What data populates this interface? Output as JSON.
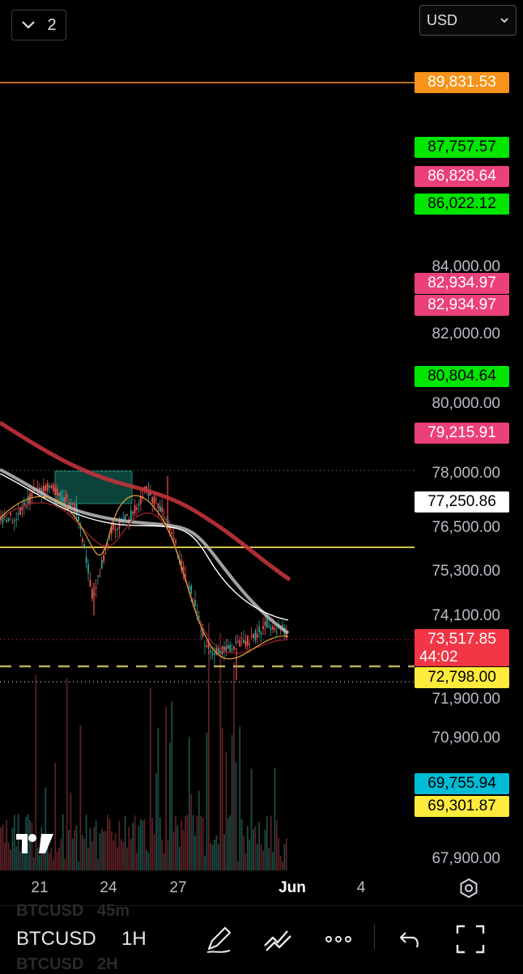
{
  "header": {
    "layout_count": "2",
    "currency": "USD"
  },
  "icons": {
    "layout": "chevron-down-icon",
    "currency_select": "chevron-down-icon",
    "settings": "gear-icon",
    "brush": "brush-icon",
    "indicators": "indicators-icon",
    "more": "more-icon",
    "undo": "undo-icon",
    "fullscreen": "fullscreen-icon",
    "logo": "tradingview-logo-icon"
  },
  "colors": {
    "background": "#000000",
    "candle_up": "#26a69a",
    "candle_down": "#ef5350",
    "ma_red": "#c2323b",
    "ma_white": "#ffffff",
    "tag_orange": "#f7931a",
    "tag_green": "#00e600",
    "tag_pink": "#ec407a",
    "tag_yellow": "#ffeb3b",
    "tag_cyan": "#00bcd4",
    "tag_red": "#f23645"
  },
  "axis_labels": [
    "84,000.00",
    "82,000.00",
    "80,000.00",
    "78,000.00",
    "76,500.00",
    "75,300.00",
    "74,100.00",
    "71,900.00",
    "70,900.00",
    "67,900.00"
  ],
  "price_tags": [
    {
      "label": "89,831.53",
      "bg": "#f7931a",
      "fg": "#ffffff"
    },
    {
      "label": "87,757.57",
      "bg": "#00e600",
      "fg": "#000000"
    },
    {
      "label": "86,828.64",
      "bg": "#ec407a",
      "fg": "#ffffff"
    },
    {
      "label": "86,022.12",
      "bg": "#00e600",
      "fg": "#000000"
    },
    {
      "label": "82,934.97",
      "bg": "#ec407a",
      "fg": "#ffffff"
    },
    {
      "label": "82,934.97",
      "bg": "#ec407a",
      "fg": "#ffffff"
    },
    {
      "label": "80,804.64",
      "bg": "#00e600",
      "fg": "#000000"
    },
    {
      "label": "79,215.91",
      "bg": "#ec407a",
      "fg": "#ffffff"
    },
    {
      "label": "77,250.86",
      "bg": "#ffffff",
      "fg": "#000000"
    },
    {
      "label": "72,798.00",
      "bg": "#ffeb3b",
      "fg": "#000000"
    },
    {
      "label": "69,755.94",
      "bg": "#00bcd4",
      "fg": "#000000"
    },
    {
      "label": "69,301.87",
      "bg": "#ffeb3b",
      "fg": "#000000"
    }
  ],
  "last_price": {
    "label": "73,517.85",
    "countdown": "44:02"
  },
  "time_axis": [
    "21",
    "24",
    "27",
    "Jun",
    "4"
  ],
  "toolbar": {
    "symbol": "BTCUSD",
    "interval": "1H",
    "interval_above": "45m",
    "interval_below": "2H"
  },
  "chart_data": {
    "type": "candlestick",
    "symbol": "BTCUSD",
    "interval": "1H",
    "price_range": [
      67600,
      91300
    ],
    "horizontal_levels": [
      89831.53,
      75900,
      72798.0
    ],
    "series": [
      {
        "name": "",
        "approx_values": [
          80700,
          79900,
          79000,
          78300,
          77500,
          76600,
          75800,
          75200
        ]
      },
      {
        "name": "",
        "approx_values": [
          78000,
          77300,
          77000,
          76900,
          76700,
          76200,
          74500,
          73600
        ]
      }
    ]
  }
}
